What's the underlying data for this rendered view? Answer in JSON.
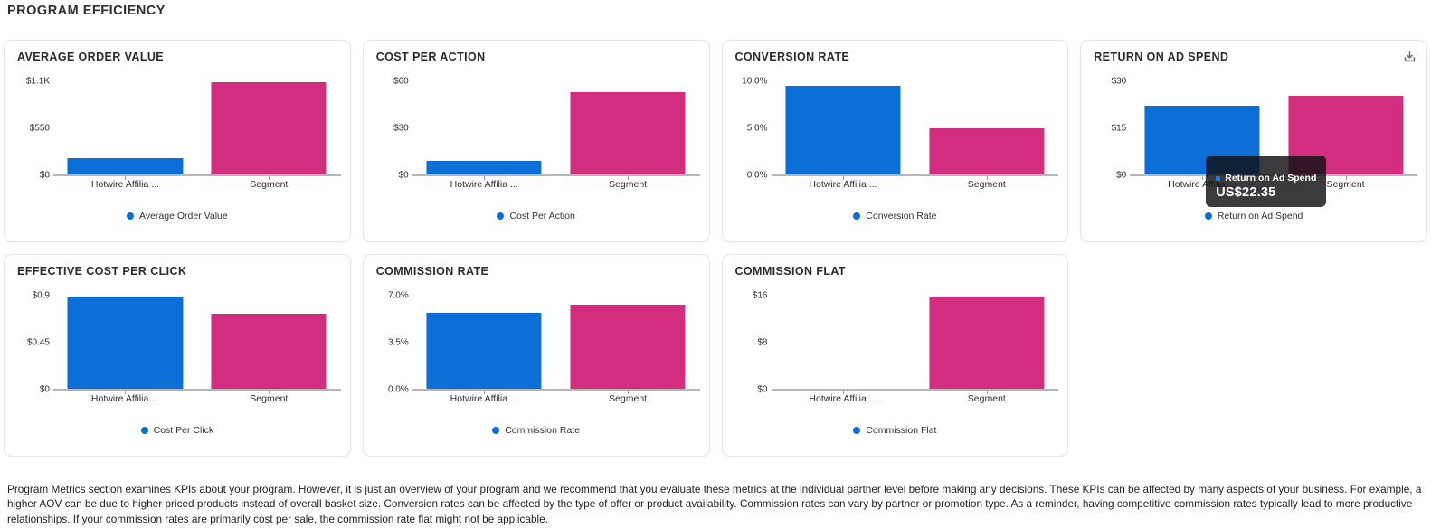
{
  "page": {
    "title": "PROGRAM EFFICIENCY",
    "footer": "Program Metrics section examines KPIs about your program. However, it is just an overview of your program and we recommend that you evaluate these metrics at the individual partner level before making any decisions. These KPIs can be affected by many aspects of your business. For example, a higher AOV can be due to higher priced products instead of overall basket size. Conversion rates can be affected by the type of offer or product availability. Commission rates can vary by partner or promotion type.  As a reminder, having competitive commission rates typically lead to more productive relationships. If your commission rates are primarily cost per sale, the commission rate flat might not be applicable."
  },
  "colors": {
    "series_blue": "#0b6fd7",
    "series_pink": "#d22d7e",
    "axis": "#b6b6b6",
    "tick": "#9a9a9a",
    "tooltip_bullet": "#1e78e8"
  },
  "chart_data": [
    {
      "type": "bar",
      "title": "AVERAGE ORDER VALUE",
      "legend": "Average Order Value",
      "categories": [
        "Hotwire Affilia ...",
        "Segment"
      ],
      "values": [
        205,
        1090
      ],
      "ymax": 1100,
      "y_ticks": [
        "$1.1K",
        "$550",
        "$0"
      ],
      "legend_position": "bottom"
    },
    {
      "type": "bar",
      "title": "COST PER ACTION",
      "legend": "Cost Per Action",
      "categories": [
        "Hotwire Affilia ...",
        "Segment"
      ],
      "values": [
        9,
        53
      ],
      "ymax": 60,
      "y_ticks": [
        "$60",
        "$30",
        "$0"
      ],
      "legend_position": "bottom"
    },
    {
      "type": "bar",
      "title": "CONVERSION RATE",
      "legend": "Conversion Rate",
      "categories": [
        "Hotwire Affilia ...",
        "Segment"
      ],
      "values": [
        9.5,
        5.0
      ],
      "ymax": 10,
      "y_ticks": [
        "10.0%",
        "5.0%",
        "0.0%"
      ],
      "legend_position": "bottom"
    },
    {
      "type": "bar",
      "title": "RETURN ON AD SPEND",
      "legend": "Return on Ad Spend",
      "categories": [
        "Hotwire Affilia ...",
        "Segment"
      ],
      "values": [
        22.35,
        25.3
      ],
      "ymax": 30,
      "y_ticks": [
        "$30",
        "$15",
        "$0"
      ],
      "legend_position": "bottom",
      "download_icon": true,
      "tooltip": {
        "label": "Return on Ad Spend",
        "value": "US$22.35"
      }
    },
    {
      "type": "bar",
      "title": "EFFECTIVE COST PER CLICK",
      "legend": "Cost Per Click",
      "categories": [
        "Hotwire Affilia ...",
        "Segment"
      ],
      "values": [
        0.89,
        0.73
      ],
      "ymax": 0.9,
      "y_ticks": [
        "$0.9",
        "$0.45",
        "$0"
      ],
      "legend_position": "bottom"
    },
    {
      "type": "bar",
      "title": "COMMISSION RATE",
      "legend": "Commission Rate",
      "categories": [
        "Hotwire Affilia ...",
        "Segment"
      ],
      "values": [
        5.7,
        6.3
      ],
      "ymax": 7,
      "y_ticks": [
        "7.0%",
        "3.5%",
        "0.0%"
      ],
      "legend_position": "bottom"
    },
    {
      "type": "bar",
      "title": "COMMISSION FLAT",
      "legend": "Commission Flat",
      "categories": [
        "Hotwire Affilia ...",
        "Segment"
      ],
      "values": [
        0,
        15.9
      ],
      "ymax": 16,
      "y_ticks": [
        "$16",
        "$8",
        "$0"
      ],
      "legend_position": "bottom"
    }
  ]
}
